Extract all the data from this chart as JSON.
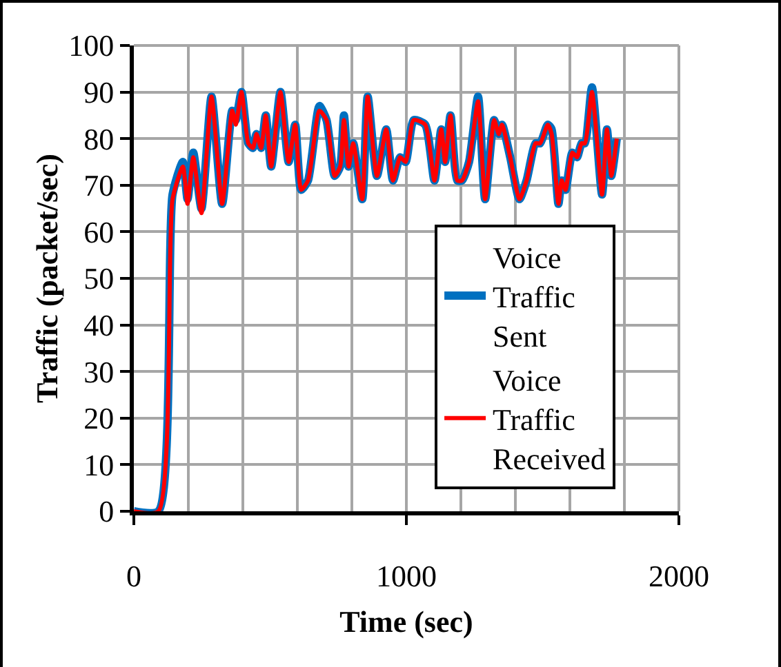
{
  "chart_data": {
    "type": "line",
    "xlabel": "Time (sec)",
    "ylabel": "Traffic (packet/sec)",
    "x": [
      0,
      90,
      142,
      180,
      197,
      218,
      248,
      285,
      324,
      361,
      374,
      395,
      420,
      437,
      450,
      467,
      484,
      504,
      538,
      568,
      592,
      614,
      639,
      681,
      707,
      737,
      757,
      771,
      788,
      805,
      838,
      858,
      892,
      926,
      951,
      977,
      997,
      1027,
      1069,
      1103,
      1128,
      1142,
      1162,
      1187,
      1204,
      1230,
      1263,
      1289,
      1322,
      1339,
      1351,
      1381,
      1415,
      1441,
      1474,
      1491,
      1519,
      1533,
      1558,
      1570,
      1584,
      1609,
      1626,
      1643,
      1655,
      1681,
      1718,
      1736,
      1752,
      1772
    ],
    "series": [
      {
        "name": "Voice Traffic Sent",
        "color": "#0070c0",
        "values": [
          0,
          0,
          68,
          75,
          67,
          77,
          65,
          89,
          66,
          86,
          84,
          90,
          79,
          78,
          81,
          78,
          85,
          74,
          90,
          75,
          83,
          69,
          71,
          87,
          84,
          72,
          74,
          85,
          74,
          79,
          67,
          89,
          72,
          82,
          71,
          76,
          75,
          84,
          83,
          71,
          82,
          75,
          85,
          71,
          71,
          75,
          89,
          67,
          84,
          81,
          83,
          76,
          67,
          71,
          79,
          79,
          83,
          82,
          66,
          71,
          69,
          77,
          76,
          79,
          79,
          91,
          68,
          82,
          72,
          80
        ]
      },
      {
        "name": "Voice Traffic Received",
        "color": "#ff0000",
        "values": [
          0,
          0,
          67,
          74,
          66,
          76,
          64,
          89,
          66,
          86,
          83,
          90,
          79,
          78,
          81,
          78,
          85,
          74,
          90,
          75,
          83,
          69,
          71,
          86,
          84,
          72,
          74,
          84,
          74,
          79,
          67,
          89,
          72,
          82,
          71,
          76,
          75,
          84,
          83,
          71,
          82,
          75,
          85,
          71,
          71,
          75,
          88,
          67,
          84,
          81,
          83,
          76,
          67,
          71,
          79,
          79,
          83,
          81,
          66,
          71,
          69,
          77,
          76,
          79,
          79,
          90,
          68,
          82,
          72,
          80
        ]
      }
    ],
    "xlim": [
      0,
      2000
    ],
    "xticks": [
      0,
      1000,
      2000
    ],
    "ylim": [
      0,
      100
    ],
    "yticks": [
      0,
      10,
      20,
      30,
      40,
      50,
      60,
      70,
      80,
      90,
      100
    ],
    "grid": true,
    "legend": "bottom right",
    "marker": "none",
    "line_style": "solid"
  }
}
